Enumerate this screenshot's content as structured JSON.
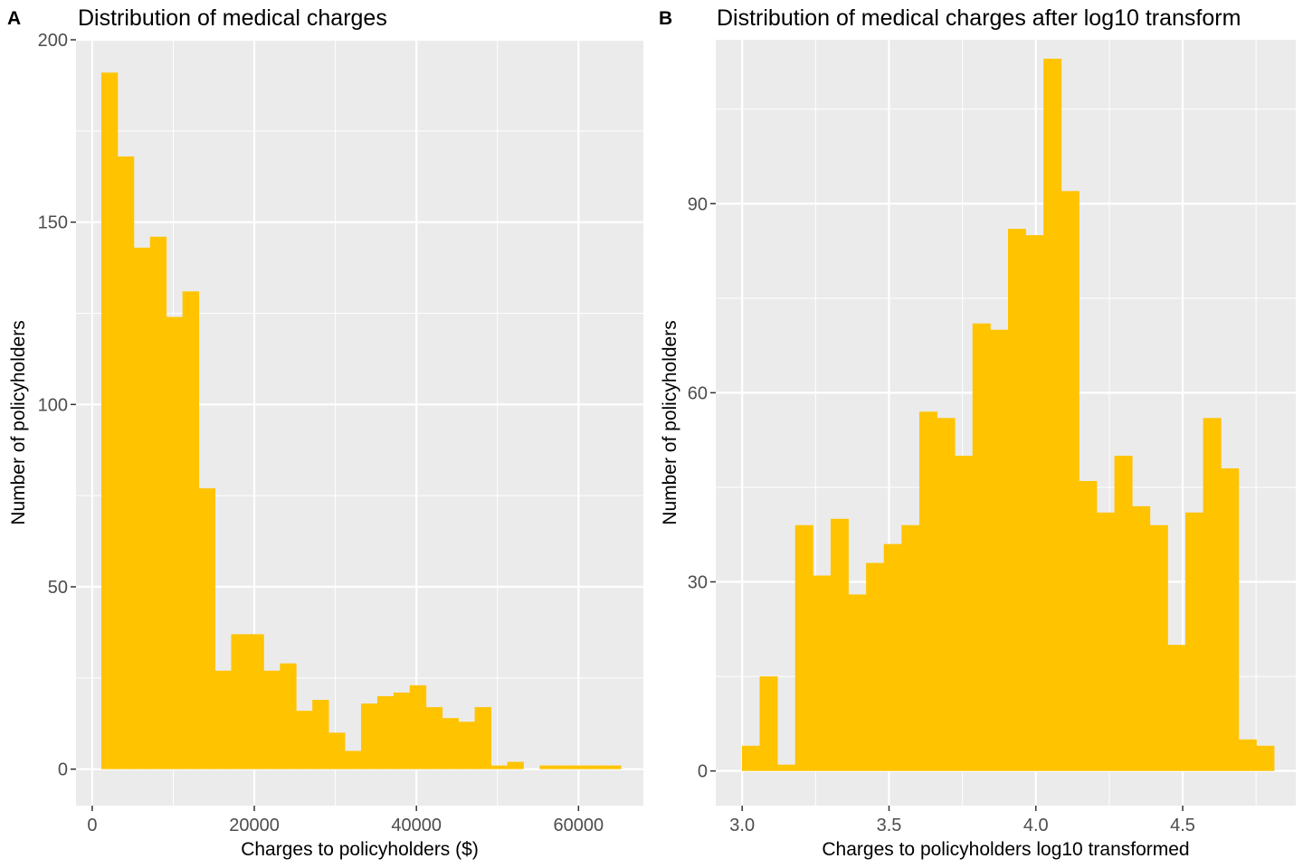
{
  "chart_data": [
    {
      "type": "bar",
      "panel_tag": "A",
      "title": "Distribution of medical charges",
      "xlabel": "Charges to policyholders ($)",
      "ylabel": "Number of policyholders",
      "xlim": [
        -2000,
        68000
      ],
      "ylim": [
        -10,
        200
      ],
      "x_ticks": [
        0,
        20000,
        40000,
        60000
      ],
      "x_tick_labels": [
        "0",
        "20000",
        "40000",
        "60000"
      ],
      "y_ticks": [
        0,
        50,
        100,
        150,
        200
      ],
      "y_tick_labels": [
        "0",
        "50",
        "100",
        "150",
        "200"
      ],
      "grid": true,
      "bar_color": "#ffc300",
      "panel_background": "#ebebeb",
      "bins": {
        "start": 1121,
        "width": 2003,
        "counts": [
          191,
          168,
          143,
          146,
          124,
          131,
          77,
          27,
          37,
          37,
          27,
          29,
          16,
          19,
          10,
          5,
          18,
          20,
          21,
          23,
          17,
          14,
          13,
          17,
          1,
          2,
          0,
          1,
          1,
          1,
          1,
          1
        ]
      }
    },
    {
      "type": "bar",
      "panel_tag": "B",
      "title": "Distribution of medical charges after log10 transform",
      "xlabel": "Charges to policyholders log10 transformed",
      "ylabel": "Number of policyholders",
      "xlim": [
        2.91,
        4.885
      ],
      "ylim": [
        -5.5,
        116
      ],
      "x_ticks": [
        3.0,
        3.5,
        4.0,
        4.5
      ],
      "x_tick_labels": [
        "3.0",
        "3.5",
        "4.0",
        "4.5"
      ],
      "y_ticks": [
        0,
        30,
        60,
        90
      ],
      "y_tick_labels": [
        "0",
        "30",
        "60",
        "90"
      ],
      "grid": true,
      "bar_color": "#ffc300",
      "panel_background": "#ebebeb",
      "bins": {
        "start": 2.9991,
        "width": 0.0604,
        "counts": [
          4,
          15,
          1,
          39,
          31,
          40,
          28,
          33,
          36,
          39,
          57,
          56,
          50,
          71,
          70,
          86,
          85,
          113,
          92,
          46,
          41,
          50,
          42,
          39,
          20,
          41,
          56,
          48,
          5,
          4
        ]
      }
    }
  ]
}
